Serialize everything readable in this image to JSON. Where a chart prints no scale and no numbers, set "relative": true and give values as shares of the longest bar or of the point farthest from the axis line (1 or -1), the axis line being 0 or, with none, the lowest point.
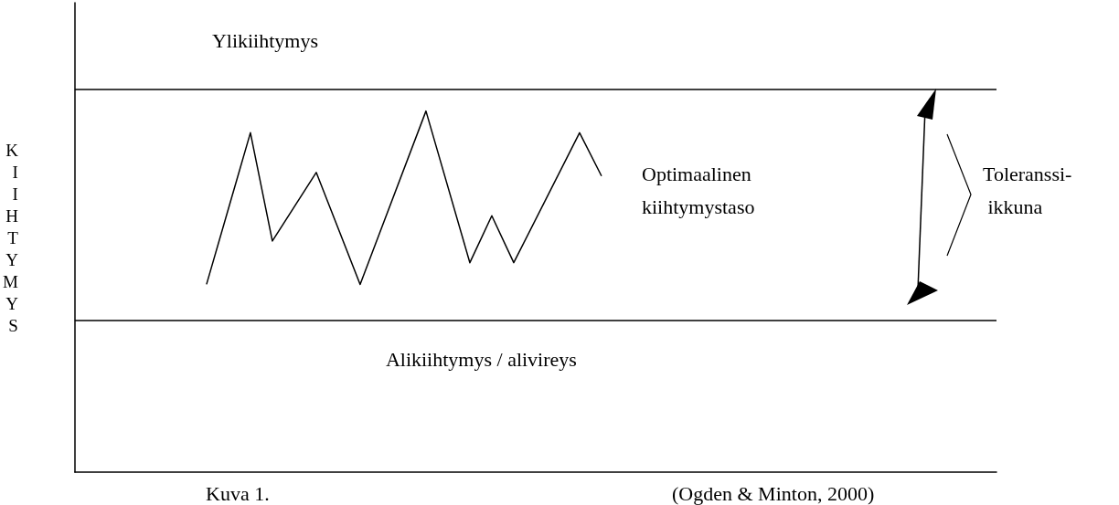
{
  "chart_data": {
    "type": "line",
    "relative": true,
    "ylabel": "KIIHTYMYS",
    "categories": [
      null,
      null,
      null,
      null,
      null,
      null,
      null,
      null,
      null,
      null,
      null,
      null,
      null,
      null,
      null,
      null,
      null,
      null,
      null,
      null,
      null,
      null,
      null,
      null,
      null,
      null,
      null,
      null,
      null,
      null,
      null,
      null,
      null,
      null,
      null,
      null,
      null,
      null,
      null,
      null,
      null,
      null,
      null
    ],
    "series": [
      {
        "color": "#000000",
        "values": [
          null,
          null,
          null,
          null,
          null,
          null,
          0.52,
          null,
          0.94,
          0.64,
          null,
          0.83,
          null,
          0.52,
          null,
          null,
          1,
          null,
          0.58,
          0.71,
          0.58,
          null,
          null,
          0.94,
          0.82,
          null,
          null,
          null,
          null,
          null,
          null,
          null,
          null,
          null,
          null,
          null,
          null,
          null,
          null,
          null,
          null,
          null,
          null
        ]
      }
    ],
    "ref_lines": [
      {
        "axis": "y",
        "value": 1.06,
        "label": "Ylikiihtymys",
        "color": "#000000"
      },
      {
        "axis": "y",
        "value": 0.42,
        "label": "Alikiihtymys / alivireys",
        "color": "#000000"
      }
    ],
    "annotations": [
      "Optimaalinen\nkiihtymystaso",
      "Toleranssi-\n ikkuna",
      "Kuva 1.",
      "(Ogden & Minton, 2000)"
    ],
    "marker": "none",
    "line_style": "solid",
    "grid": false
  }
}
